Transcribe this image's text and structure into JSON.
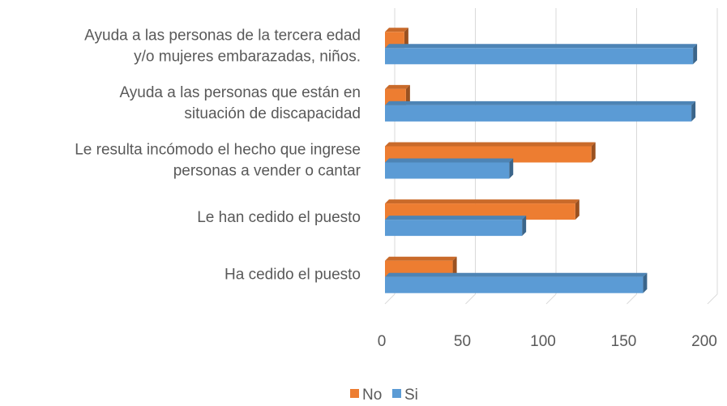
{
  "chart_data": {
    "type": "bar",
    "orientation": "horizontal",
    "categories": [
      [
        "Ayuda a las personas de la tercera edad",
        "y/o mujeres embarazadas, niños."
      ],
      [
        "Ayuda a las personas que están en",
        "situación de discapacidad"
      ],
      [
        "Le resulta incómodo el hecho que ingrese",
        "personas a vender o cantar"
      ],
      [
        "Le han cedido el puesto"
      ],
      [
        "Ha cedido el puesto"
      ]
    ],
    "series": [
      {
        "name": "No",
        "color": "#ed7d31",
        "values": [
          12,
          13,
          128,
          118,
          42
        ]
      },
      {
        "name": "Si",
        "color": "#5b9bd5",
        "values": [
          191,
          190,
          77,
          85,
          160
        ]
      }
    ],
    "xlim": [
      0,
      200
    ],
    "xticks": [
      0,
      50,
      100,
      150,
      200
    ],
    "grid": true,
    "legend": "bottom"
  }
}
